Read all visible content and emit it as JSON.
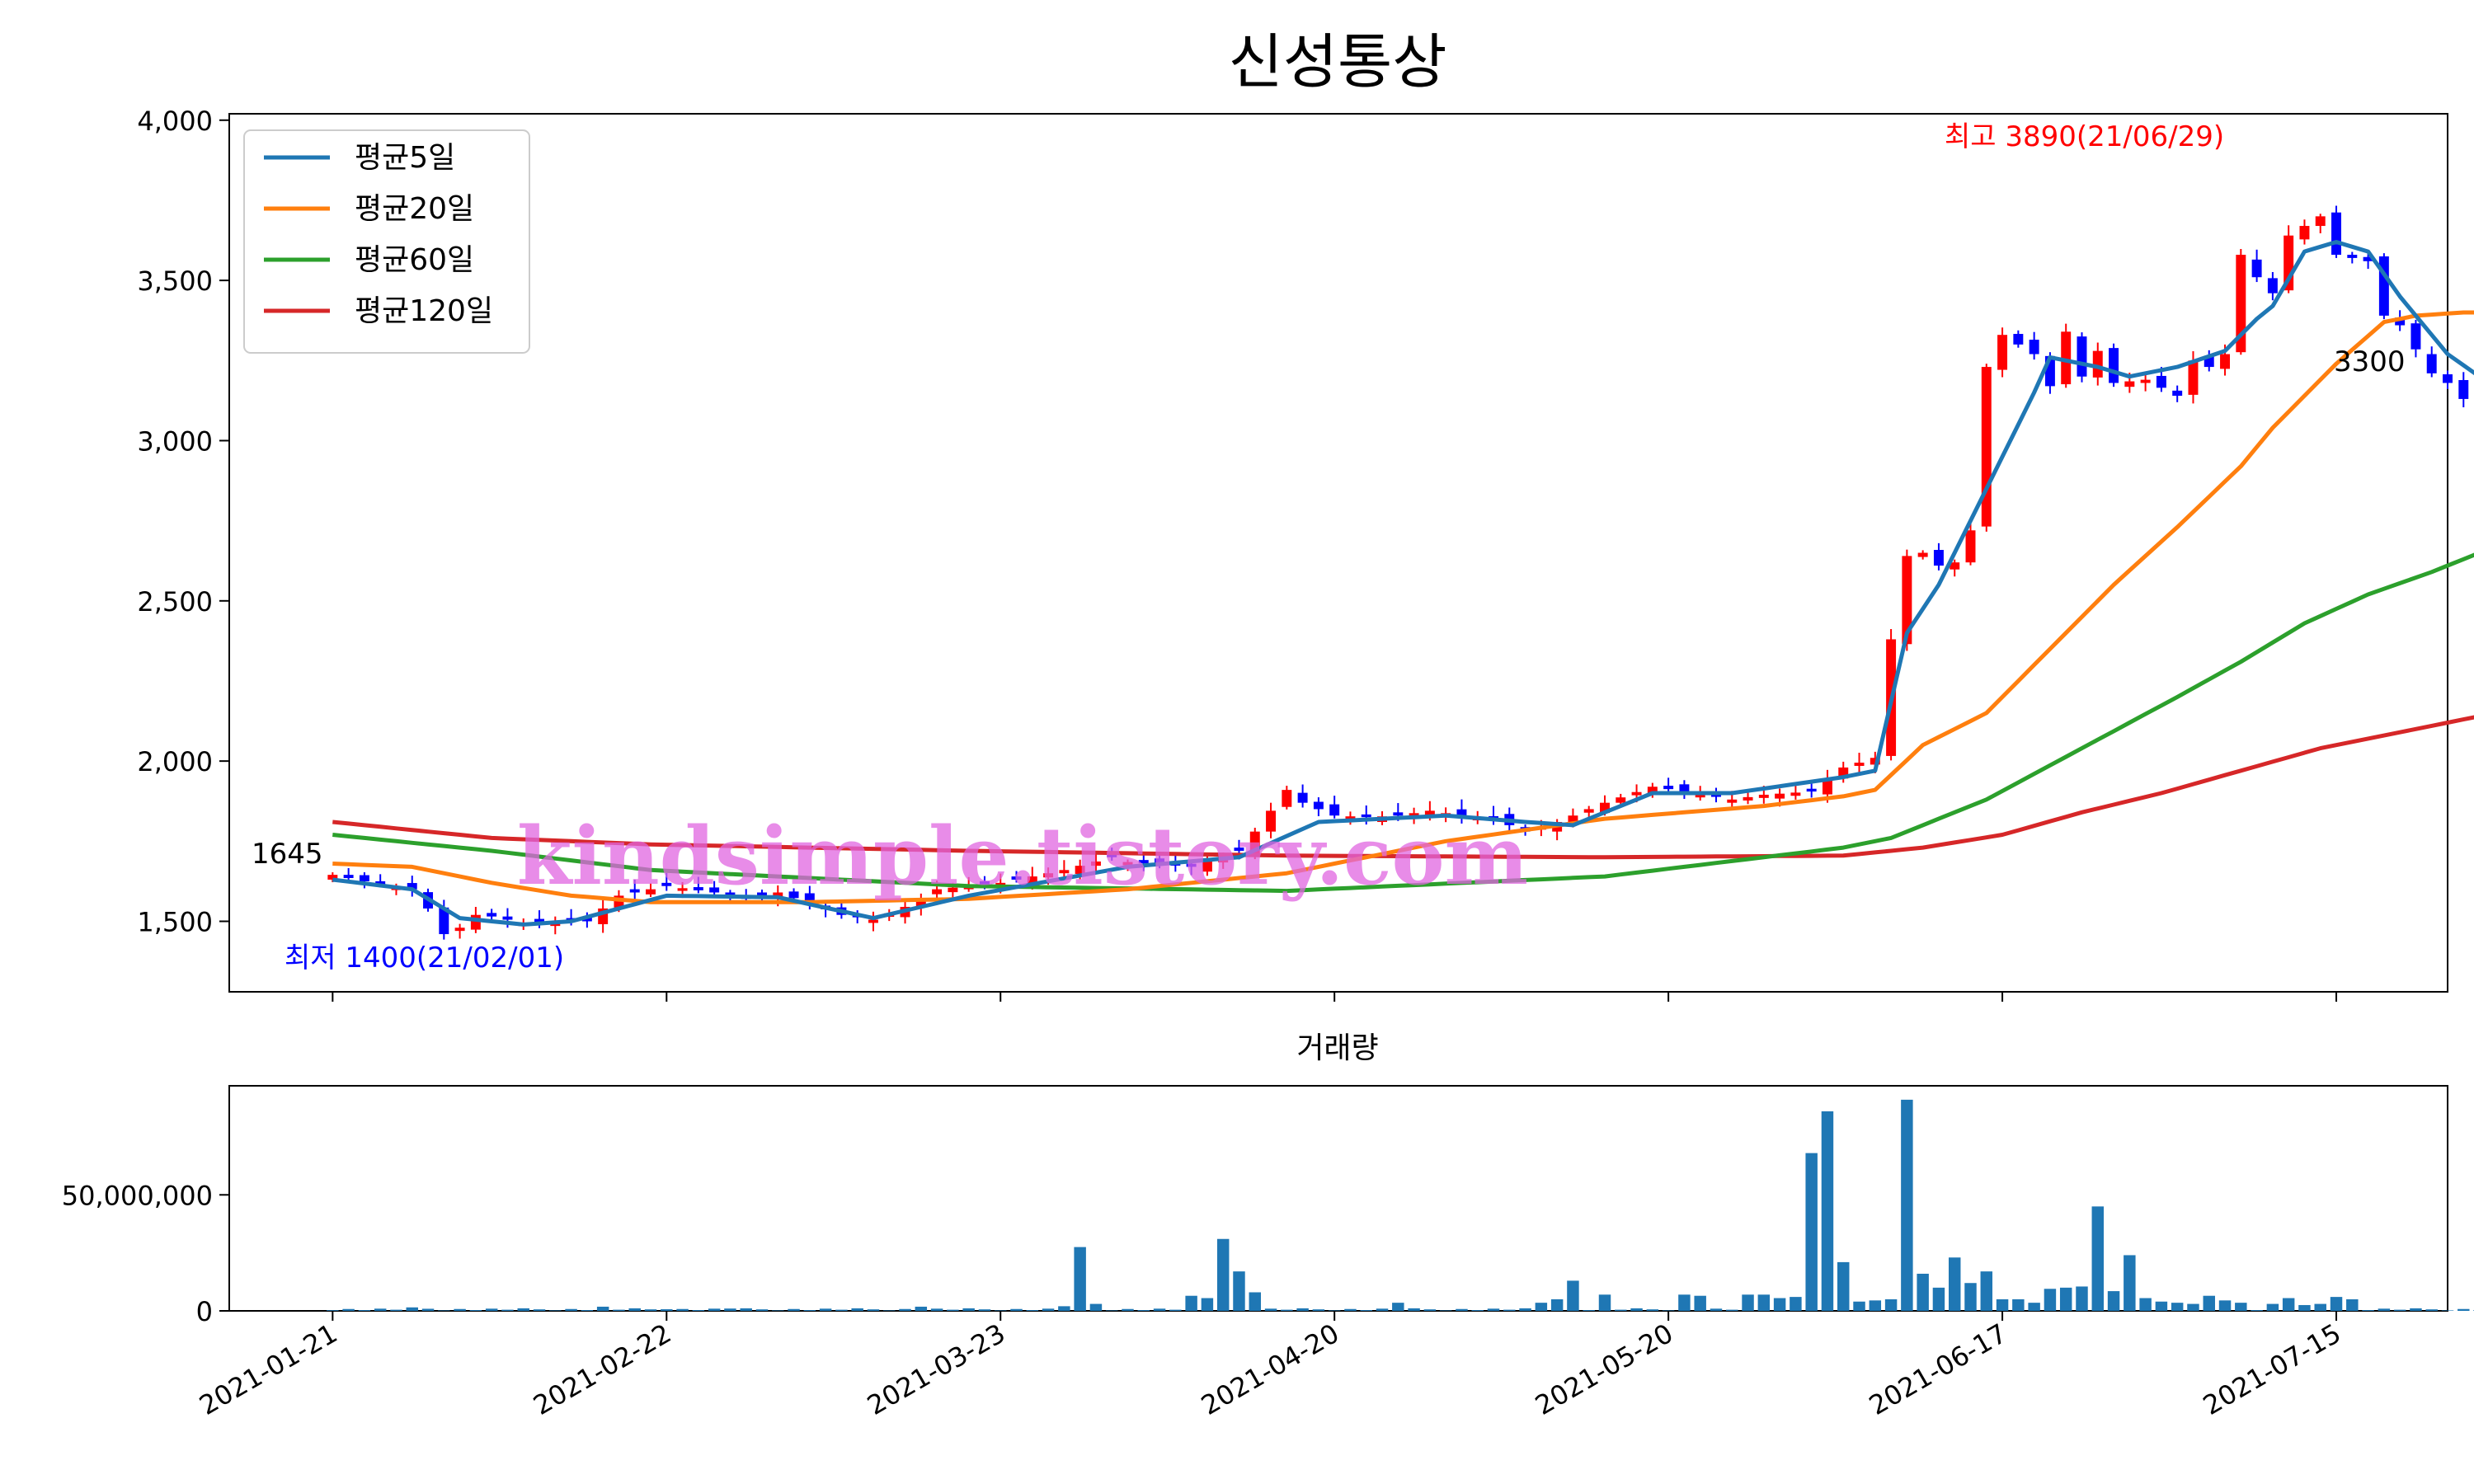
{
  "chart_data": [
    {
      "type": "candlestick",
      "title": "신성통상",
      "ylim": [
        1280,
        4020
      ],
      "yticks": [
        1500,
        2000,
        2500,
        3000,
        3500,
        4000
      ],
      "ytick_labels": [
        "1,500",
        "2,000",
        "2,500",
        "3,000",
        "3,500",
        "4,000"
      ],
      "xticks": [
        "2021-01-21",
        "2021-02-22",
        "2021-03-23",
        "2021-04-20",
        "2021-05-20",
        "2021-06-17",
        "2021-07-15"
      ],
      "xtick_index": [
        0,
        21,
        42,
        63,
        84,
        105,
        126
      ],
      "x_index_range": [
        -6.5,
        133
      ],
      "legend": {
        "placement": "upper-left",
        "entries": [
          {
            "label": "평균5일",
            "color": "#1f77b4"
          },
          {
            "label": "평균20일",
            "color": "#ff7f0e"
          },
          {
            "label": "평균60일",
            "color": "#2ca02c"
          },
          {
            "label": "평균120일",
            "color": "#d62728"
          }
        ]
      },
      "annotations": {
        "first_price": "1645",
        "last_price": "3300",
        "low": "최저 1400(21/02/01)",
        "high": "최고 3890(21/06/29)"
      },
      "colors": {
        "up": "#ff0000",
        "down": "#0000ff",
        "low_text": "#0000ff",
        "high_text": "#ff0000"
      },
      "close_anchors": [
        [
          0,
          1645
        ],
        [
          3,
          1615
        ],
        [
          5,
          1600
        ],
        [
          6,
          1540
        ],
        [
          7,
          1460
        ],
        [
          8,
          1480
        ],
        [
          9,
          1520
        ],
        [
          10,
          1515
        ],
        [
          12,
          1495
        ],
        [
          14,
          1500
        ],
        [
          16,
          1500
        ],
        [
          18,
          1580
        ],
        [
          21,
          1610
        ],
        [
          24,
          1590
        ],
        [
          26,
          1570
        ],
        [
          28,
          1590
        ],
        [
          30,
          1555
        ],
        [
          32,
          1520
        ],
        [
          34,
          1505
        ],
        [
          36,
          1545
        ],
        [
          38,
          1600
        ],
        [
          42,
          1620
        ],
        [
          46,
          1660
        ],
        [
          49,
          1700
        ],
        [
          50,
          1685
        ],
        [
          54,
          1670
        ],
        [
          57,
          1720
        ],
        [
          58,
          1780
        ],
        [
          60,
          1910
        ],
        [
          61,
          1870
        ],
        [
          63,
          1830
        ],
        [
          65,
          1825
        ],
        [
          67,
          1830
        ],
        [
          69,
          1845
        ],
        [
          71,
          1830
        ],
        [
          73,
          1820
        ],
        [
          75,
          1780
        ],
        [
          77,
          1810
        ],
        [
          80,
          1870
        ],
        [
          83,
          1920
        ],
        [
          85,
          1905
        ],
        [
          88,
          1880
        ],
        [
          90,
          1895
        ],
        [
          93,
          1905
        ],
        [
          95,
          1980
        ],
        [
          97,
          2010
        ],
        [
          98,
          2380
        ],
        [
          99,
          2640
        ],
        [
          100,
          2650
        ],
        [
          101,
          2610
        ],
        [
          102,
          2620
        ],
        [
          103,
          2720
        ],
        [
          104,
          3230
        ],
        [
          105,
          3330
        ],
        [
          107,
          3270
        ],
        [
          108,
          3170
        ],
        [
          109,
          3340
        ],
        [
          110,
          3200
        ],
        [
          111,
          3280
        ],
        [
          112,
          3180
        ],
        [
          114,
          3190
        ],
        [
          116,
          3140
        ],
        [
          117,
          3250
        ],
        [
          118,
          3230
        ],
        [
          119,
          3270
        ],
        [
          120,
          3580
        ],
        [
          121,
          3510
        ],
        [
          122,
          3460
        ],
        [
          123,
          3640
        ],
        [
          125,
          3700
        ],
        [
          126,
          3580
        ],
        [
          128,
          3560
        ],
        [
          129,
          3390
        ],
        [
          130,
          3360
        ],
        [
          132,
          3210
        ],
        [
          133,
          3180
        ],
        [
          134,
          3130
        ],
        [
          135,
          3090
        ],
        [
          136,
          3300
        ]
      ],
      "ma_levels": {
        "ma5": [
          [
            0,
            1630
          ],
          [
            5,
            1600
          ],
          [
            8,
            1510
          ],
          [
            12,
            1490
          ],
          [
            15,
            1500
          ],
          [
            21,
            1580
          ],
          [
            28,
            1575
          ],
          [
            34,
            1510
          ],
          [
            40,
            1580
          ],
          [
            50,
            1670
          ],
          [
            57,
            1700
          ],
          [
            62,
            1810
          ],
          [
            70,
            1830
          ],
          [
            75,
            1810
          ],
          [
            78,
            1800
          ],
          [
            83,
            1900
          ],
          [
            88,
            1900
          ],
          [
            95,
            1950
          ],
          [
            97,
            1970
          ],
          [
            99,
            2400
          ],
          [
            101,
            2550
          ],
          [
            104,
            2850
          ],
          [
            107,
            3150
          ],
          [
            108,
            3260
          ],
          [
            111,
            3230
          ],
          [
            113,
            3200
          ],
          [
            116,
            3230
          ],
          [
            119,
            3280
          ],
          [
            121,
            3380
          ],
          [
            122,
            3420
          ],
          [
            124,
            3590
          ],
          [
            126,
            3620
          ],
          [
            128,
            3590
          ],
          [
            130,
            3450
          ],
          [
            133,
            3270
          ],
          [
            135,
            3200
          ],
          [
            136,
            3210
          ]
        ],
        "ma20": [
          [
            0,
            1680
          ],
          [
            5,
            1670
          ],
          [
            10,
            1620
          ],
          [
            15,
            1580
          ],
          [
            20,
            1560
          ],
          [
            30,
            1560
          ],
          [
            40,
            1570
          ],
          [
            50,
            1600
          ],
          [
            60,
            1650
          ],
          [
            70,
            1750
          ],
          [
            80,
            1820
          ],
          [
            90,
            1860
          ],
          [
            95,
            1890
          ],
          [
            97,
            1910
          ],
          [
            100,
            2050
          ],
          [
            104,
            2150
          ],
          [
            108,
            2350
          ],
          [
            112,
            2550
          ],
          [
            116,
            2730
          ],
          [
            120,
            2920
          ],
          [
            122,
            3040
          ],
          [
            126,
            3240
          ],
          [
            129,
            3370
          ],
          [
            131,
            3390
          ],
          [
            134,
            3400
          ],
          [
            136,
            3400
          ]
        ],
        "ma60": [
          [
            0,
            1770
          ],
          [
            10,
            1720
          ],
          [
            20,
            1660
          ],
          [
            40,
            1610
          ],
          [
            60,
            1595
          ],
          [
            80,
            1640
          ],
          [
            95,
            1730
          ],
          [
            98,
            1760
          ],
          [
            104,
            1880
          ],
          [
            110,
            2040
          ],
          [
            116,
            2200
          ],
          [
            120,
            2310
          ],
          [
            124,
            2430
          ],
          [
            128,
            2520
          ],
          [
            132,
            2590
          ],
          [
            136,
            2670
          ]
        ],
        "ma120": [
          [
            0,
            1810
          ],
          [
            10,
            1760
          ],
          [
            20,
            1740
          ],
          [
            40,
            1720
          ],
          [
            60,
            1705
          ],
          [
            80,
            1700
          ],
          [
            95,
            1705
          ],
          [
            100,
            1730
          ],
          [
            105,
            1770
          ],
          [
            110,
            1840
          ],
          [
            115,
            1900
          ],
          [
            120,
            1970
          ],
          [
            125,
            2040
          ],
          [
            130,
            2090
          ],
          [
            136,
            2150
          ]
        ]
      }
    },
    {
      "type": "bar",
      "title": "거래량",
      "ylim": [
        0,
        97000000
      ],
      "yticks": [
        0,
        50000000
      ],
      "ytick_labels": [
        "0",
        "50,000,000"
      ],
      "volume_spikes": [
        [
          0,
          300000
        ],
        [
          5,
          1500000
        ],
        [
          6,
          900000
        ],
        [
          17,
          1800000
        ],
        [
          21,
          700000
        ],
        [
          25,
          1000000
        ],
        [
          37,
          1800000
        ],
        [
          46,
          2000000
        ],
        [
          47,
          27500000
        ],
        [
          48,
          3000000
        ],
        [
          54,
          6500000
        ],
        [
          55,
          5500000
        ],
        [
          56,
          31000000
        ],
        [
          57,
          17000000
        ],
        [
          58,
          8000000
        ],
        [
          67,
          3500000
        ],
        [
          76,
          3500000
        ],
        [
          77,
          5000000
        ],
        [
          78,
          13000000
        ],
        [
          80,
          7000000
        ],
        [
          85,
          7000000
        ],
        [
          86,
          6500000
        ],
        [
          89,
          7000000
        ],
        [
          90,
          7000000
        ],
        [
          91,
          5500000
        ],
        [
          92,
          6000000
        ],
        [
          93,
          68000000
        ],
        [
          94,
          86000000
        ],
        [
          95,
          21000000
        ],
        [
          96,
          4000000
        ],
        [
          97,
          4500000
        ],
        [
          98,
          5000000
        ],
        [
          99,
          91000000
        ],
        [
          100,
          16000000
        ],
        [
          101,
          10000000
        ],
        [
          102,
          23000000
        ],
        [
          103,
          12000000
        ],
        [
          104,
          17000000
        ],
        [
          105,
          5000000
        ],
        [
          106,
          5000000
        ],
        [
          107,
          3500000
        ],
        [
          108,
          9500000
        ],
        [
          109,
          10000000
        ],
        [
          110,
          10500000
        ],
        [
          111,
          45000000
        ],
        [
          112,
          8500000
        ],
        [
          113,
          24000000
        ],
        [
          114,
          5500000
        ],
        [
          115,
          4000000
        ],
        [
          116,
          3500000
        ],
        [
          117,
          3000000
        ],
        [
          118,
          6500000
        ],
        [
          119,
          4500000
        ],
        [
          120,
          3500000
        ],
        [
          122,
          3000000
        ],
        [
          123,
          5500000
        ],
        [
          124,
          2500000
        ],
        [
          125,
          3000000
        ],
        [
          126,
          6000000
        ],
        [
          127,
          5000000
        ]
      ]
    }
  ],
  "watermark": "kindsimple.tistory.com"
}
